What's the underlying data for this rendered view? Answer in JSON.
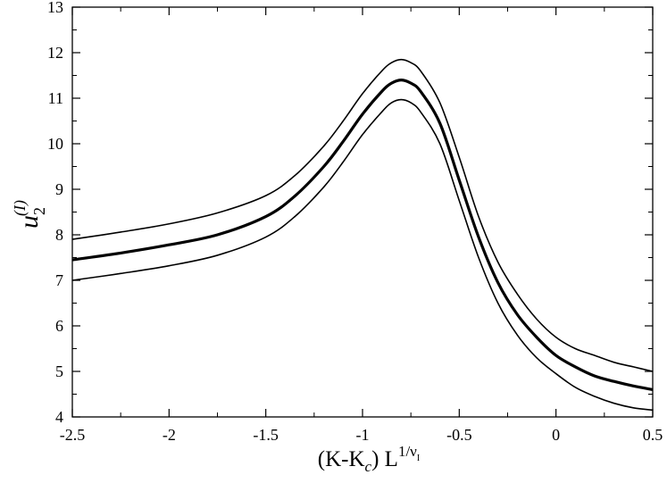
{
  "chart_data": {
    "type": "line",
    "title": "",
    "xlabel": {
      "main": "(K-K",
      "sub": "c",
      "close": ") L",
      "sup": "1/ν",
      "supsub": "I"
    },
    "ylabel": {
      "main": "u",
      "sub": "2",
      "sup": "(I)"
    },
    "xlim": [
      -2.5,
      0.5
    ],
    "ylim": [
      4,
      13
    ],
    "x_ticks": [
      -2.5,
      -2,
      -1.5,
      -1,
      -0.5,
      0,
      0.5
    ],
    "x_tick_labels": [
      "-2.5",
      "-2",
      "-1.5",
      "-1",
      "-0.5",
      "0",
      "0.5"
    ],
    "y_ticks": [
      4,
      5,
      6,
      7,
      8,
      9,
      10,
      11,
      12,
      13
    ],
    "y_tick_labels": [
      "4",
      "5",
      "6",
      "7",
      "8",
      "9",
      "10",
      "11",
      "12",
      "13"
    ],
    "grid": false,
    "legend": "none",
    "colors": {
      "line": "#000000",
      "axes": "#000000",
      "background": "#ffffff"
    },
    "series": [
      {
        "role": "upper",
        "line_style": "thin",
        "x": [
          -2.5,
          -2.25,
          -2.0,
          -1.75,
          -1.5,
          -1.35,
          -1.2,
          -1.1,
          -1.0,
          -0.9,
          -0.85,
          -0.8,
          -0.75,
          -0.7,
          -0.6,
          -0.5,
          -0.4,
          -0.3,
          -0.2,
          -0.1,
          0.0,
          0.1,
          0.2,
          0.3,
          0.4,
          0.5
        ],
        "y": [
          7.9,
          8.06,
          8.24,
          8.48,
          8.86,
          9.3,
          9.95,
          10.5,
          11.1,
          11.6,
          11.78,
          11.85,
          11.78,
          11.6,
          10.9,
          9.7,
          8.4,
          7.4,
          6.7,
          6.15,
          5.75,
          5.5,
          5.35,
          5.2,
          5.1,
          5.0
        ]
      },
      {
        "role": "central",
        "line_style": "thick",
        "x": [
          -2.5,
          -2.25,
          -2.0,
          -1.75,
          -1.5,
          -1.35,
          -1.2,
          -1.1,
          -1.0,
          -0.9,
          -0.85,
          -0.8,
          -0.75,
          -0.7,
          -0.6,
          -0.5,
          -0.4,
          -0.3,
          -0.2,
          -0.1,
          0.0,
          0.1,
          0.2,
          0.3,
          0.4,
          0.5
        ],
        "y": [
          7.45,
          7.6,
          7.78,
          8.0,
          8.4,
          8.85,
          9.5,
          10.05,
          10.65,
          11.15,
          11.33,
          11.4,
          11.33,
          11.15,
          10.45,
          9.2,
          7.95,
          6.95,
          6.25,
          5.75,
          5.35,
          5.1,
          4.9,
          4.78,
          4.68,
          4.6
        ]
      },
      {
        "role": "lower",
        "line_style": "thin",
        "x": [
          -2.5,
          -2.25,
          -2.0,
          -1.75,
          -1.5,
          -1.35,
          -1.2,
          -1.1,
          -1.0,
          -0.9,
          -0.85,
          -0.8,
          -0.75,
          -0.7,
          -0.6,
          -0.5,
          -0.4,
          -0.3,
          -0.2,
          -0.1,
          0.0,
          0.1,
          0.2,
          0.3,
          0.4,
          0.5
        ],
        "y": [
          7.0,
          7.15,
          7.32,
          7.55,
          7.95,
          8.4,
          9.05,
          9.6,
          10.2,
          10.7,
          10.9,
          10.97,
          10.9,
          10.7,
          10.0,
          8.75,
          7.5,
          6.5,
          5.8,
          5.3,
          4.95,
          4.65,
          4.45,
          4.3,
          4.2,
          4.15
        ]
      }
    ]
  }
}
